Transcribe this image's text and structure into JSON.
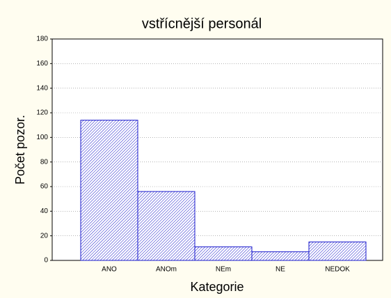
{
  "chart_data": {
    "type": "bar",
    "title": "vstřícnější personál",
    "xlabel": "Kategorie",
    "ylabel": "Počet pozor.",
    "categories": [
      "ANO",
      "ANOm",
      "NEm",
      "NE",
      "NEDOK"
    ],
    "values": [
      114,
      56,
      11,
      7,
      15
    ],
    "color": "#1a1acc",
    "ylim": [
      0,
      180
    ],
    "yticks": [
      0,
      20,
      40,
      60,
      80,
      100,
      120,
      140,
      160,
      180
    ],
    "grid": true
  }
}
